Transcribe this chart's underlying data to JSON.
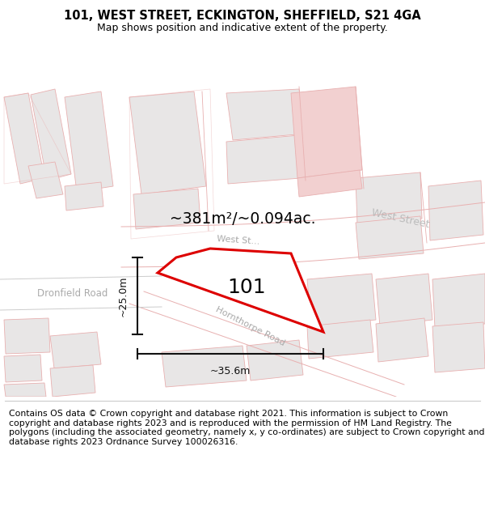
{
  "title": "101, WEST STREET, ECKINGTON, SHEFFIELD, S21 4GA",
  "subtitle": "Map shows position and indicative extent of the property.",
  "area_label": "~381m²/~0.094ac.",
  "dim_h": "~25.0m",
  "dim_w": "~35.6m",
  "property_label": "101",
  "footer": "Contains OS data © Crown copyright and database right 2021. This information is subject to Crown copyright and database rights 2023 and is reproduced with the permission of HM Land Registry. The polygons (including the associated geometry, namely x, y co-ordinates) are subject to Crown copyright and database rights 2023 Ordnance Survey 100026316.",
  "title_fontsize": 10.5,
  "subtitle_fontsize": 9,
  "footer_fontsize": 7.8,
  "map_bg": "#f7f5f5",
  "building_gray": "#e8e6e6",
  "building_pink": "#f2d0d0",
  "road_line_color": "#e8b0b0",
  "road_label_color": "#aaaaaa",
  "dim_line_color": "#111111",
  "property_color": "#dd0000"
}
